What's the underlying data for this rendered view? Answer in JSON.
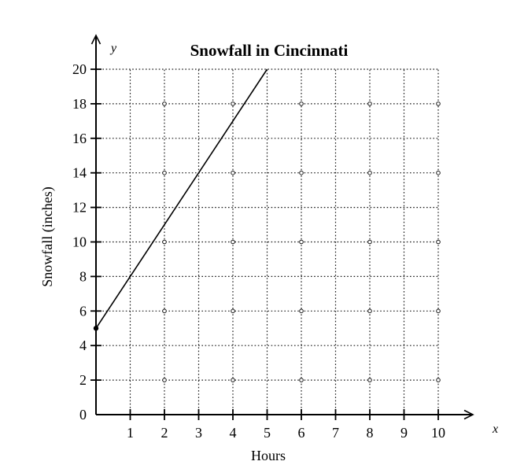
{
  "figure": {
    "background": "#ffffff",
    "ink_color": "#000000",
    "grid_color": "#1a1a1a"
  },
  "chart_data": {
    "type": "line",
    "title": "Snowfall in Cincinnati",
    "xlabel": "Hours",
    "ylabel": "Snowfall (inches)",
    "x_axis_letter": "x",
    "y_axis_letter": "y",
    "x_ticks": [
      1,
      2,
      3,
      4,
      5,
      6,
      7,
      8,
      9,
      10
    ],
    "y_ticks": [
      0,
      2,
      4,
      6,
      8,
      10,
      12,
      14,
      16,
      18,
      20
    ],
    "xlim": [
      0,
      10
    ],
    "ylim": [
      0,
      20
    ],
    "grid": "dotted",
    "legend_position": "none",
    "series": [
      {
        "name": "snowfall",
        "points": [
          [
            0,
            5
          ],
          [
            5,
            20
          ]
        ]
      }
    ],
    "start_point_dot": [
      0,
      5
    ]
  }
}
